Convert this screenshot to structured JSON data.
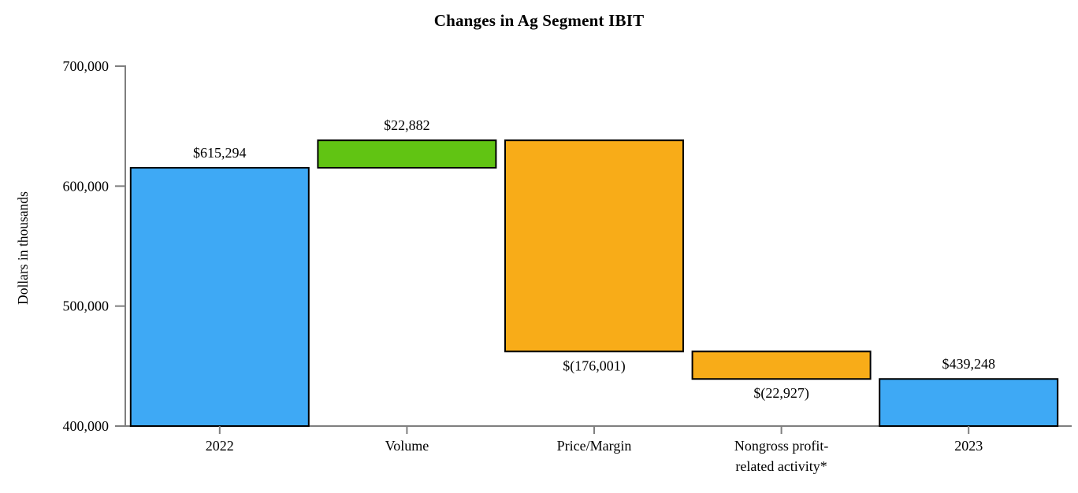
{
  "title": "Changes in Ag Segment IBIT",
  "chart_data": {
    "type": "bar",
    "subtype": "waterfall",
    "title": "Changes in Ag Segment IBIT",
    "ylabel": "Dollars in thousands",
    "xlabel": "",
    "ylim": [
      400000,
      700000
    ],
    "grid": false,
    "legend": null,
    "yticks": [
      {
        "value": 400000,
        "label": "400,000"
      },
      {
        "value": 500000,
        "label": "500,000"
      },
      {
        "value": 600000,
        "label": "600,000"
      },
      {
        "value": 700000,
        "label": "700,000"
      }
    ],
    "categories": [
      "2022",
      "Volume",
      "Price/Margin",
      "Nongross profit-related activity*",
      "2023"
    ],
    "bars": [
      {
        "category_lines": [
          "2022"
        ],
        "kind": "total",
        "start": 400000,
        "end": 615294,
        "value": 615294,
        "display": "$615,294",
        "label_position": "above",
        "color": "#3EA9F5"
      },
      {
        "category_lines": [
          "Volume"
        ],
        "kind": "increase",
        "start": 615294,
        "end": 638176,
        "value": 22882,
        "display": "$22,882",
        "label_position": "above",
        "color": "#61C413"
      },
      {
        "category_lines": [
          "Price/Margin"
        ],
        "kind": "decrease",
        "start": 638176,
        "end": 462175,
        "value": -176001,
        "display": "$(176,001)",
        "label_position": "below",
        "color": "#F8AC18"
      },
      {
        "category_lines": [
          "Nongross profit-",
          "related activity*"
        ],
        "kind": "decrease",
        "start": 462175,
        "end": 439248,
        "value": -22927,
        "display": "$(22,927)",
        "label_position": "below",
        "color": "#F8AC18"
      },
      {
        "category_lines": [
          "2023"
        ],
        "kind": "total",
        "start": 400000,
        "end": 439248,
        "value": 439248,
        "display": "$439,248",
        "label_position": "above",
        "color": "#3EA9F5"
      }
    ],
    "colors": {
      "total": "#3EA9F5",
      "increase": "#61C413",
      "decrease": "#F8AC18",
      "bar_border": "#000000",
      "axis": "#7F7F7F",
      "text": "#000000",
      "background": "#FFFFFF"
    }
  }
}
